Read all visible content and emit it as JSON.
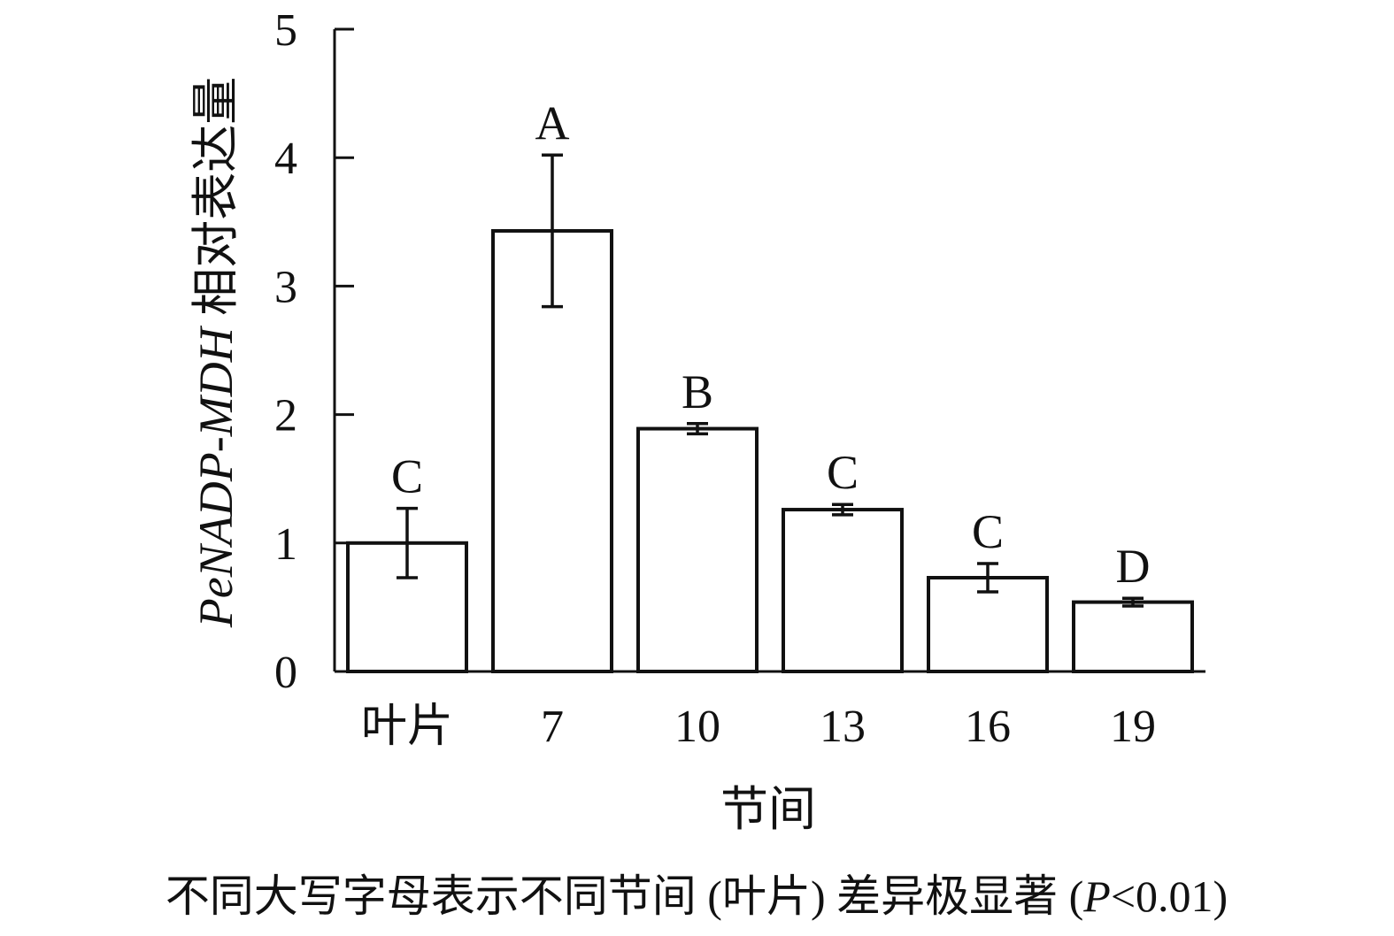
{
  "chart_data": {
    "type": "bar",
    "categories": [
      "叶片",
      "7",
      "10",
      "13",
      "16",
      "19"
    ],
    "values": [
      1.0,
      3.43,
      1.89,
      1.26,
      0.73,
      0.54
    ],
    "errors": [
      0.27,
      0.59,
      0.04,
      0.04,
      0.11,
      0.03
    ],
    "significance": [
      "C",
      "A",
      "B",
      "C",
      "C",
      "D"
    ],
    "xlabel": "节间",
    "ylabel_italic": "PeNADP-MDH",
    "ylabel_rest": " 相对表达量",
    "ylim": [
      0,
      5
    ],
    "yticks": [
      0,
      1,
      2,
      3,
      4,
      5
    ],
    "grid": false,
    "bar_fill": "#ffffff",
    "bar_stroke": "#111111"
  },
  "caption": {
    "text_before": "不同大写字母表示不同节间 (叶片) 差异极显著 (",
    "p_italic": "P",
    "text_after": "<0.01)"
  }
}
